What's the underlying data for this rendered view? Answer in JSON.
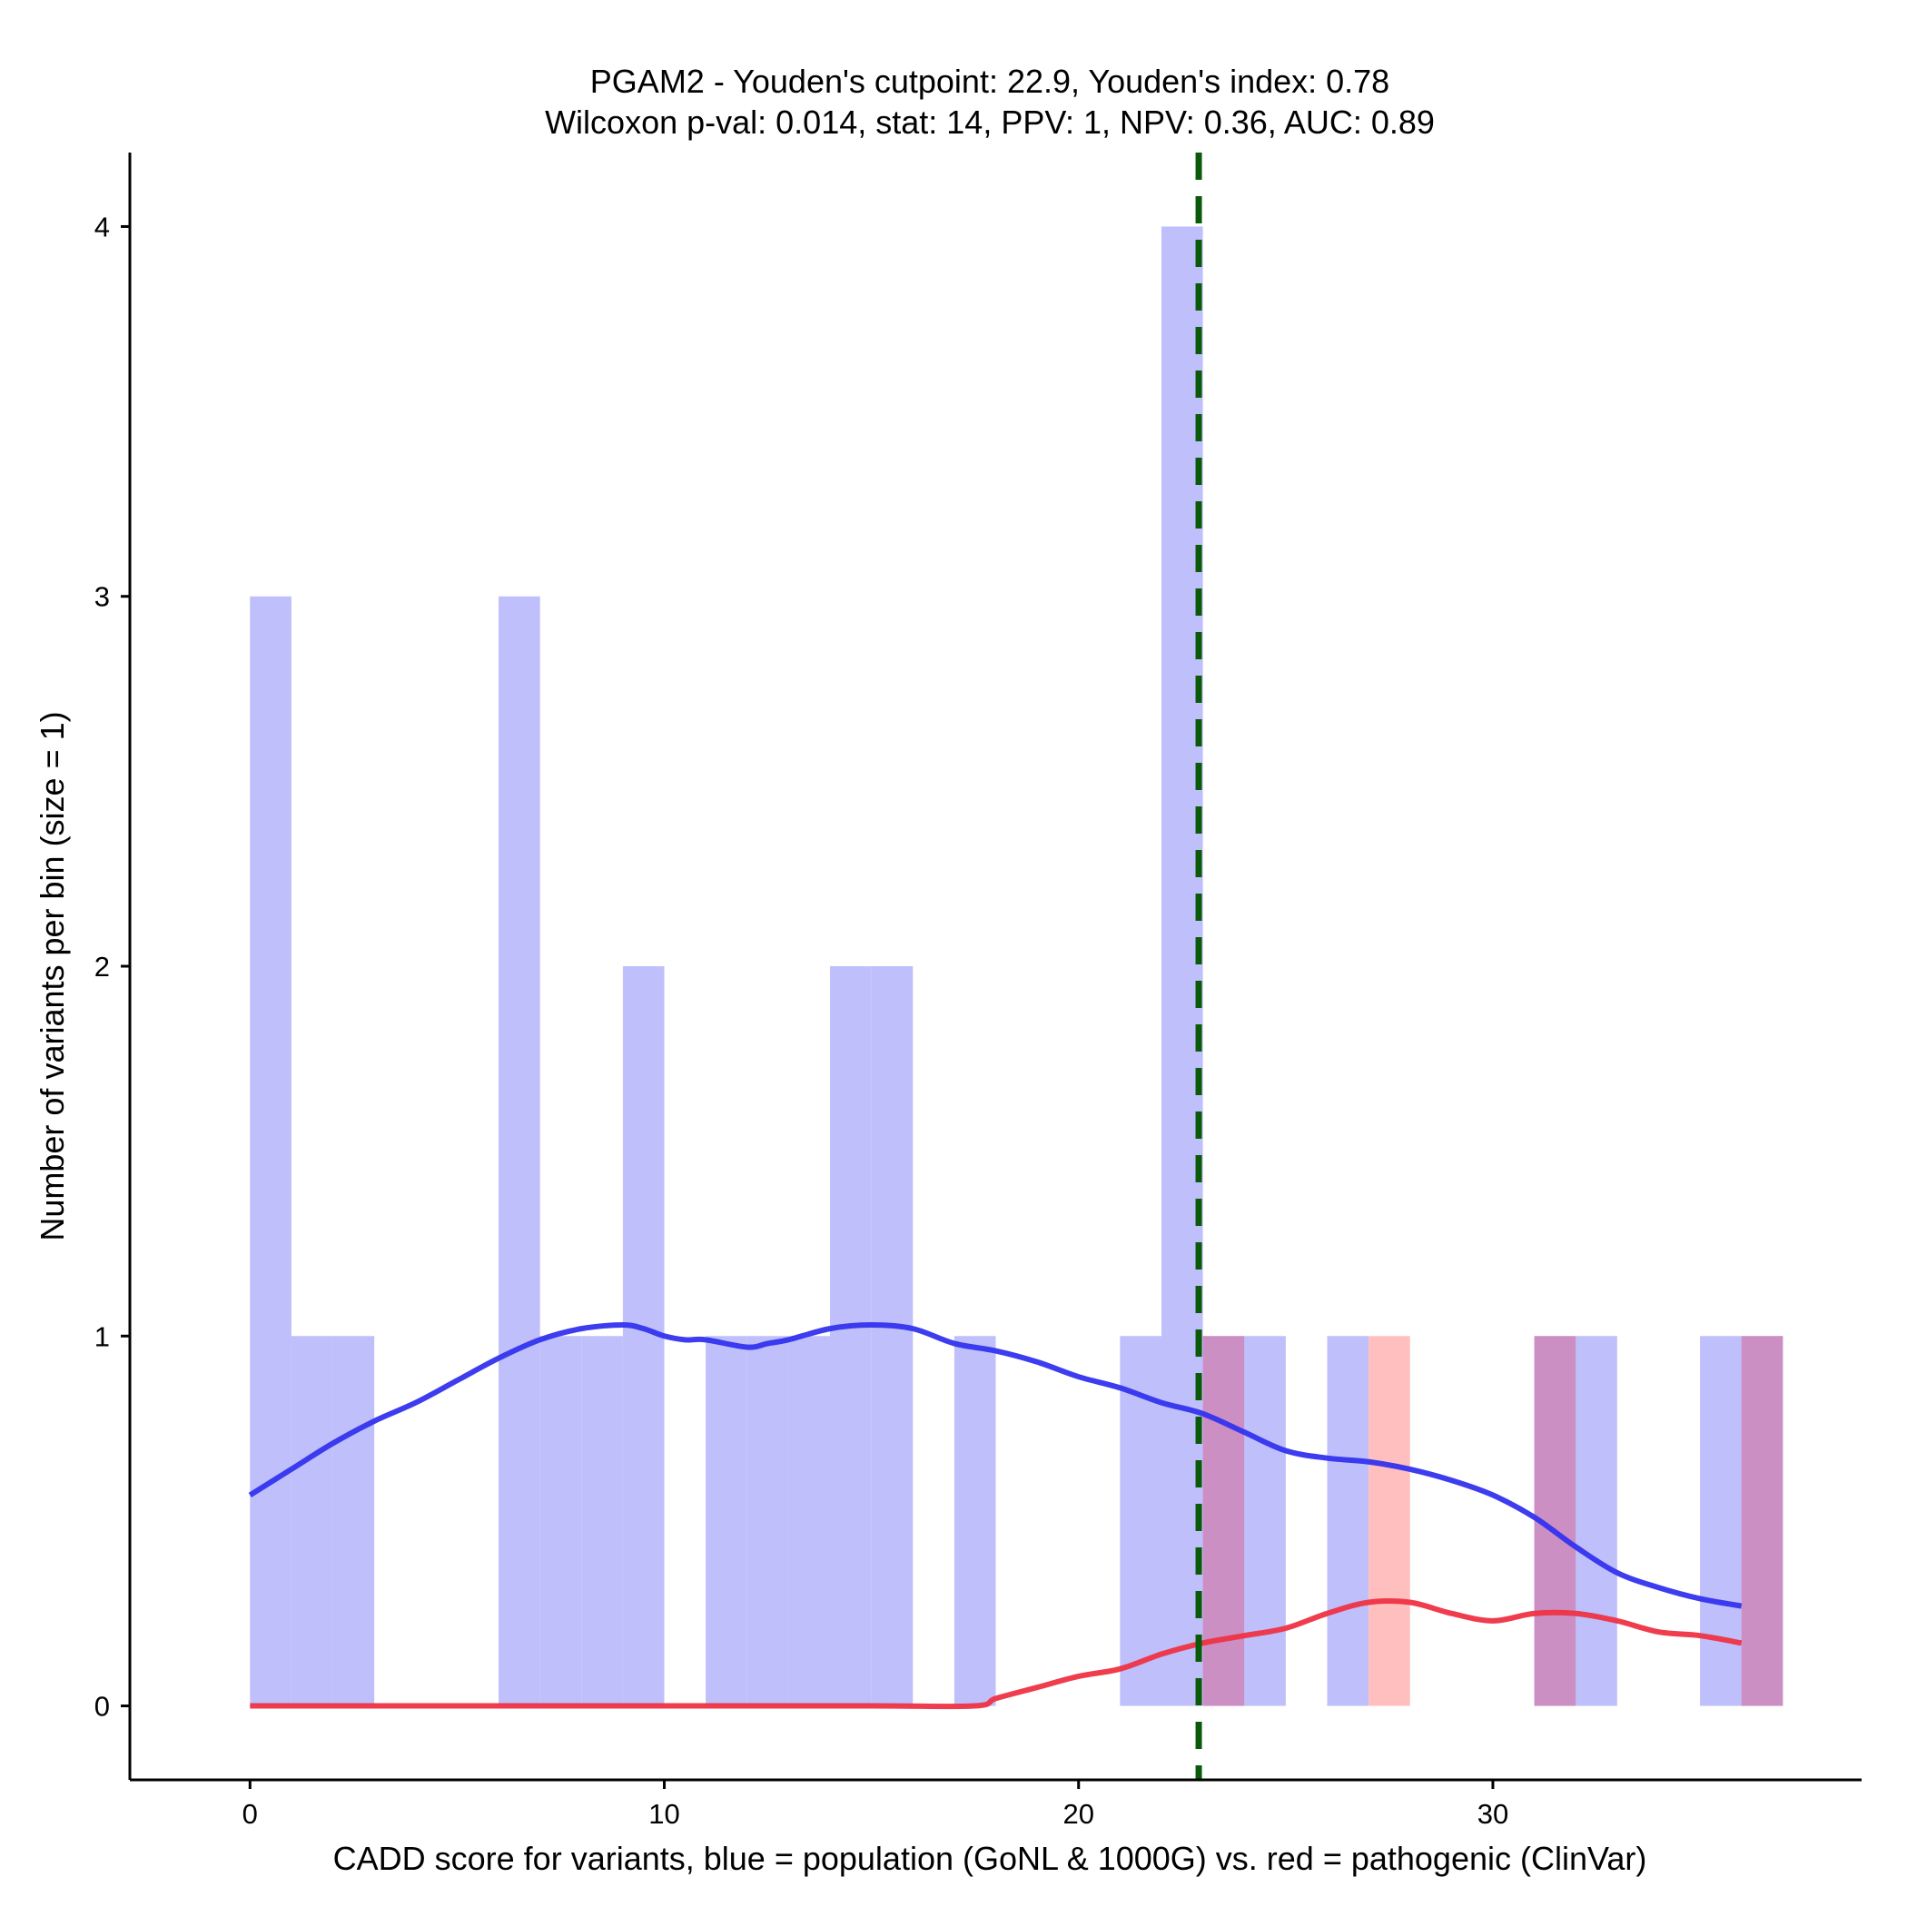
{
  "chart_data": {
    "type": "bar",
    "title_line1": "PGAM2 - Youden's cutpoint: 22.9, Youden's index: 0.78",
    "title_line2": "Wilcoxon p-val: 0.014, stat: 14, PPV: 1, NPV: 0.36, AUC: 0.89",
    "xlabel": "CADD score for variants, blue = population (GoNL & 1000G) vs. red = pathogenic (ClinVar)",
    "ylabel": "Number of variants per bin (size = 1)",
    "xlim": [
      -2.9,
      38.9
    ],
    "ylim": [
      -0.2,
      4.2
    ],
    "x_ticks": [
      0,
      10,
      20,
      30
    ],
    "y_ticks": [
      0,
      1,
      2,
      3,
      4
    ],
    "bin_width": 1,
    "cutpoint": 22.9,
    "colors": {
      "population_bar": "#bfbffb",
      "pathogenic_bar": "#ffbfbf",
      "overlap_bar": "#cc8fc4",
      "population_line": "#3333ee",
      "pathogenic_line": "#ee3344",
      "cutpoint_line": "#0a5a0a",
      "axis": "#000000"
    },
    "series": [
      {
        "name": "population",
        "bins": [
          {
            "start": 0,
            "count": 3
          },
          {
            "start": 1,
            "count": 1
          },
          {
            "start": 2,
            "count": 1
          },
          {
            "start": 6,
            "count": 3
          },
          {
            "start": 7,
            "count": 1
          },
          {
            "start": 8,
            "count": 1
          },
          {
            "start": 9,
            "count": 2
          },
          {
            "start": 11,
            "count": 1
          },
          {
            "start": 12,
            "count": 1
          },
          {
            "start": 13,
            "count": 1
          },
          {
            "start": 14,
            "count": 2
          },
          {
            "start": 15,
            "count": 2
          },
          {
            "start": 17,
            "count": 1
          },
          {
            "start": 21,
            "count": 1
          },
          {
            "start": 22,
            "count": 4
          },
          {
            "start": 23,
            "count": 1
          },
          {
            "start": 24,
            "count": 1
          },
          {
            "start": 26,
            "count": 1
          },
          {
            "start": 31,
            "count": 1
          },
          {
            "start": 32,
            "count": 1
          },
          {
            "start": 35,
            "count": 1
          },
          {
            "start": 36,
            "count": 1
          }
        ]
      },
      {
        "name": "pathogenic",
        "bins": [
          {
            "start": 23,
            "count": 1
          },
          {
            "start": 27,
            "count": 1
          },
          {
            "start": 31,
            "count": 1
          },
          {
            "start": 36,
            "count": 1
          }
        ]
      }
    ],
    "density": {
      "population": {
        "x": [
          0,
          1,
          2,
          3,
          4,
          5,
          6,
          7,
          8,
          9,
          9.5,
          10,
          10.5,
          11,
          12,
          12.5,
          13,
          14,
          15,
          16,
          17,
          18,
          19,
          20,
          21,
          22,
          23,
          24,
          25,
          26,
          27,
          28,
          29,
          30,
          31,
          32,
          33,
          34,
          35,
          36
        ],
        "y": [
          0.57,
          0.64,
          0.71,
          0.77,
          0.82,
          0.88,
          0.94,
          0.99,
          1.02,
          1.03,
          1.02,
          1.0,
          0.99,
          0.99,
          0.97,
          0.98,
          0.99,
          1.02,
          1.03,
          1.02,
          0.98,
          0.96,
          0.93,
          0.89,
          0.86,
          0.82,
          0.79,
          0.74,
          0.69,
          0.67,
          0.66,
          0.64,
          0.61,
          0.57,
          0.51,
          0.43,
          0.36,
          0.32,
          0.29,
          0.27
        ]
      },
      "pathogenic": {
        "x": [
          0,
          5,
          10,
          15,
          17.5,
          18,
          19,
          20,
          21,
          22,
          23,
          24,
          25,
          26,
          27,
          28,
          29,
          30,
          31,
          32,
          33,
          34,
          35,
          36
        ],
        "y": [
          0,
          0,
          0,
          0,
          0,
          0.02,
          0.05,
          0.08,
          0.1,
          0.14,
          0.17,
          0.19,
          0.21,
          0.25,
          0.28,
          0.28,
          0.25,
          0.23,
          0.25,
          0.25,
          0.23,
          0.2,
          0.19,
          0.17
        ]
      }
    }
  }
}
